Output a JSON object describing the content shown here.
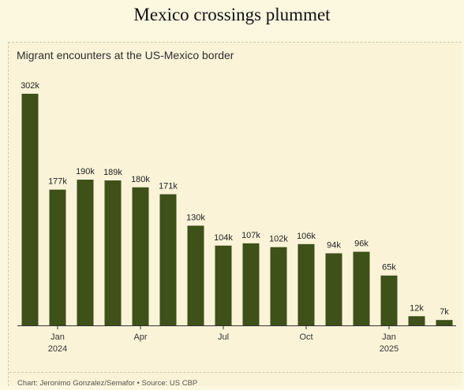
{
  "headline": "Mexico crossings plummet",
  "credit": "Chart: Jeronimo Gonzalez/Semafor • Source: US CBP",
  "colors": {
    "bar": "#3d5118",
    "background": "#fbf3d8",
    "page": "#fcf7df"
  },
  "chart_data": {
    "type": "bar",
    "title": "Migrant encounters at the US-Mexico border",
    "xlabel": "",
    "ylabel": "",
    "ylim": [
      0,
      310000
    ],
    "grid": false,
    "categories": [
      "Dec 2023",
      "Jan 2024",
      "Feb 2024",
      "Mar 2024",
      "Apr 2024",
      "May 2024",
      "Jun 2024",
      "Jul 2024",
      "Aug 2024",
      "Sep 2024",
      "Oct 2024",
      "Nov 2024",
      "Dec 2024",
      "Jan 2025",
      "Feb 2025",
      "Mar 2025"
    ],
    "values": [
      302000,
      177000,
      190000,
      189000,
      180000,
      171000,
      130000,
      104000,
      107000,
      102000,
      106000,
      94000,
      96000,
      65000,
      12000,
      7000
    ],
    "value_labels": [
      "302k",
      "177k",
      "190k",
      "189k",
      "180k",
      "171k",
      "130k",
      "104k",
      "107k",
      "102k",
      "106k",
      "94k",
      "96k",
      "65k",
      "12k",
      "7k"
    ],
    "x_ticks": [
      {
        "index": 1,
        "label": "Jan",
        "sublabel": "2024"
      },
      {
        "index": 4,
        "label": "Apr",
        "sublabel": ""
      },
      {
        "index": 7,
        "label": "Jul",
        "sublabel": ""
      },
      {
        "index": 10,
        "label": "Oct",
        "sublabel": ""
      },
      {
        "index": 13,
        "label": "Jan",
        "sublabel": "2025"
      }
    ]
  }
}
